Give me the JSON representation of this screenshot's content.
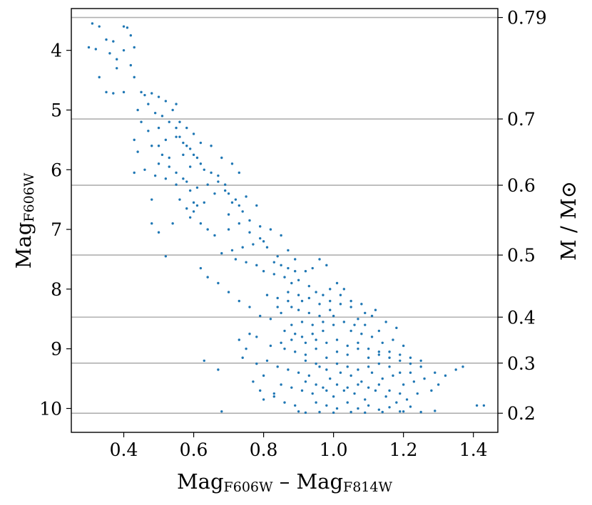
{
  "chart_data": {
    "type": "scatter",
    "xlabel": {
      "main": "Mag",
      "sub": "F606W",
      "sep": " – ",
      "main2": "Mag",
      "sub2": "F814W"
    },
    "ylabel": {
      "main": "Mag",
      "sub": "F606W"
    },
    "y2label": "M / M⊙",
    "xlim": [
      0.25,
      1.47
    ],
    "ylim": [
      3.3,
      10.4
    ],
    "y_inverted": true,
    "x_ticks": [
      0.4,
      0.6,
      0.8,
      1.0,
      1.2,
      1.4
    ],
    "x_tick_labels": [
      "0.4",
      "0.6",
      "0.8",
      "1.0",
      "1.2",
      "1.4"
    ],
    "y_ticks": [
      4,
      5,
      6,
      7,
      8,
      9,
      10
    ],
    "y_tick_labels": [
      "4",
      "5",
      "6",
      "7",
      "8",
      "9",
      "10"
    ],
    "mass_lines": [
      {
        "label": "0.79",
        "mag": 3.45
      },
      {
        "label": "0.7",
        "mag": 5.15
      },
      {
        "label": "0.6",
        "mag": 6.26
      },
      {
        "label": "0.5",
        "mag": 7.43
      },
      {
        "label": "0.4",
        "mag": 8.47
      },
      {
        "label": "0.3",
        "mag": 9.24
      },
      {
        "label": "0.2",
        "mag": 10.08
      }
    ],
    "point_color": "#1f77b4",
    "gridline_color": "#b0b0b0",
    "points": [
      [
        0.31,
        3.55
      ],
      [
        0.33,
        3.6
      ],
      [
        0.35,
        3.82
      ],
      [
        0.37,
        3.85
      ],
      [
        0.3,
        3.95
      ],
      [
        0.32,
        3.98
      ],
      [
        0.36,
        4.05
      ],
      [
        0.38,
        4.15
      ],
      [
        0.4,
        3.6
      ],
      [
        0.41,
        3.62
      ],
      [
        0.42,
        3.75
      ],
      [
        0.43,
        3.95
      ],
      [
        0.4,
        4.0
      ],
      [
        0.42,
        4.25
      ],
      [
        0.38,
        4.3
      ],
      [
        0.43,
        4.45
      ],
      [
        0.33,
        4.45
      ],
      [
        0.35,
        4.7
      ],
      [
        0.37,
        4.72
      ],
      [
        0.4,
        4.7
      ],
      [
        0.45,
        4.7
      ],
      [
        0.46,
        4.75
      ],
      [
        0.48,
        4.72
      ],
      [
        0.5,
        4.78
      ],
      [
        0.52,
        4.85
      ],
      [
        0.55,
        4.9
      ],
      [
        0.47,
        4.9
      ],
      [
        0.44,
        5.0
      ],
      [
        0.49,
        5.05
      ],
      [
        0.51,
        5.1
      ],
      [
        0.54,
        5.0
      ],
      [
        0.56,
        5.2
      ],
      [
        0.58,
        5.3
      ],
      [
        0.45,
        5.2
      ],
      [
        0.47,
        5.35
      ],
      [
        0.5,
        5.3
      ],
      [
        0.52,
        5.5
      ],
      [
        0.55,
        5.45
      ],
      [
        0.43,
        5.5
      ],
      [
        0.44,
        5.7
      ],
      [
        0.48,
        5.6
      ],
      [
        0.53,
        5.8
      ],
      [
        0.57,
        5.75
      ],
      [
        0.59,
        5.95
      ],
      [
        0.5,
        5.9
      ],
      [
        0.46,
        6.0
      ],
      [
        0.49,
        6.1
      ],
      [
        0.52,
        6.15
      ],
      [
        0.55,
        6.25
      ],
      [
        0.58,
        6.2
      ],
      [
        0.61,
        6.3
      ],
      [
        0.6,
        5.4
      ],
      [
        0.62,
        5.55
      ],
      [
        0.65,
        5.6
      ],
      [
        0.68,
        5.8
      ],
      [
        0.71,
        5.9
      ],
      [
        0.73,
        6.05
      ],
      [
        0.67,
        6.1
      ],
      [
        0.64,
        6.25
      ],
      [
        0.66,
        6.4
      ],
      [
        0.69,
        6.35
      ],
      [
        0.72,
        6.5
      ],
      [
        0.75,
        6.45
      ],
      [
        0.78,
        6.6
      ],
      [
        0.74,
        6.7
      ],
      [
        0.7,
        6.75
      ],
      [
        0.76,
        6.85
      ],
      [
        0.79,
        6.95
      ],
      [
        0.82,
        7.0
      ],
      [
        0.85,
        7.1
      ],
      [
        0.8,
        7.2
      ],
      [
        0.77,
        7.25
      ],
      [
        0.74,
        7.3
      ],
      [
        0.71,
        7.35
      ],
      [
        0.68,
        7.4
      ],
      [
        0.56,
        6.5
      ],
      [
        0.58,
        6.65
      ],
      [
        0.6,
        6.7
      ],
      [
        0.62,
        6.9
      ],
      [
        0.64,
        7.0
      ],
      [
        0.66,
        7.1
      ],
      [
        0.63,
        6.55
      ],
      [
        0.59,
        6.8
      ],
      [
        0.54,
        6.9
      ],
      [
        0.52,
        7.45
      ],
      [
        0.48,
        6.5
      ],
      [
        0.48,
        6.9
      ],
      [
        0.5,
        7.05
      ],
      [
        0.43,
        6.05
      ],
      [
        0.72,
        7.5
      ],
      [
        0.75,
        7.55
      ],
      [
        0.78,
        7.6
      ],
      [
        0.8,
        7.7
      ],
      [
        0.83,
        7.75
      ],
      [
        0.86,
        7.8
      ],
      [
        0.88,
        7.9
      ],
      [
        0.9,
        7.85
      ],
      [
        0.92,
        7.7
      ],
      [
        0.94,
        7.65
      ],
      [
        0.96,
        7.5
      ],
      [
        0.98,
        7.6
      ],
      [
        0.84,
        7.45
      ],
      [
        0.87,
        7.35
      ],
      [
        0.89,
        7.5
      ],
      [
        0.93,
        7.95
      ],
      [
        0.95,
        8.05
      ],
      [
        0.97,
        8.1
      ],
      [
        0.99,
        8.0
      ],
      [
        1.01,
        7.9
      ],
      [
        1.03,
        8.0
      ],
      [
        0.91,
        8.2
      ],
      [
        0.88,
        8.3
      ],
      [
        0.85,
        8.4
      ],
      [
        0.82,
        8.5
      ],
      [
        0.79,
        8.45
      ],
      [
        0.76,
        8.3
      ],
      [
        0.73,
        8.2
      ],
      [
        0.7,
        8.05
      ],
      [
        0.67,
        7.9
      ],
      [
        0.64,
        7.8
      ],
      [
        0.62,
        7.65
      ],
      [
        0.81,
        8.1
      ],
      [
        0.84,
        8.15
      ],
      [
        0.87,
        8.05
      ],
      [
        0.9,
        8.35
      ],
      [
        0.93,
        8.4
      ],
      [
        0.96,
        8.45
      ],
      [
        0.99,
        8.35
      ],
      [
        1.02,
        8.25
      ],
      [
        1.05,
        8.3
      ],
      [
        1.07,
        8.5
      ],
      [
        1.09,
        8.6
      ],
      [
        1.11,
        8.45
      ],
      [
        1.13,
        8.7
      ],
      [
        1.0,
        8.6
      ],
      [
        0.97,
        8.7
      ],
      [
        0.94,
        8.75
      ],
      [
        0.91,
        8.8
      ],
      [
        0.88,
        8.85
      ],
      [
        0.85,
        8.9
      ],
      [
        0.82,
        8.95
      ],
      [
        0.78,
        8.8
      ],
      [
        0.76,
        8.75
      ],
      [
        0.86,
        9.0
      ],
      [
        0.89,
        9.05
      ],
      [
        0.92,
        9.1
      ],
      [
        0.95,
        9.0
      ],
      [
        0.98,
        9.15
      ],
      [
        1.01,
        9.05
      ],
      [
        1.04,
        9.1
      ],
      [
        1.07,
        9.0
      ],
      [
        1.1,
        9.15
      ],
      [
        1.13,
        9.1
      ],
      [
        1.16,
        9.05
      ],
      [
        1.19,
        9.2
      ],
      [
        1.22,
        9.25
      ],
      [
        1.25,
        9.3
      ],
      [
        1.2,
        8.95
      ],
      [
        1.17,
        8.85
      ],
      [
        1.14,
        8.9
      ],
      [
        1.11,
        8.8
      ],
      [
        1.08,
        8.75
      ],
      [
        1.05,
        8.7
      ],
      [
        0.81,
        9.2
      ],
      [
        0.84,
        9.3
      ],
      [
        0.87,
        9.35
      ],
      [
        0.9,
        9.4
      ],
      [
        0.93,
        9.45
      ],
      [
        0.96,
        9.3
      ],
      [
        0.99,
        9.5
      ],
      [
        1.02,
        9.4
      ],
      [
        1.05,
        9.45
      ],
      [
        1.08,
        9.55
      ],
      [
        1.11,
        9.4
      ],
      [
        1.14,
        9.5
      ],
      [
        1.17,
        9.45
      ],
      [
        1.2,
        9.6
      ],
      [
        1.23,
        9.55
      ],
      [
        1.26,
        9.5
      ],
      [
        1.29,
        9.4
      ],
      [
        1.32,
        9.45
      ],
      [
        1.35,
        9.35
      ],
      [
        1.37,
        9.3
      ],
      [
        1.3,
        9.6
      ],
      [
        1.28,
        9.7
      ],
      [
        0.85,
        9.6
      ],
      [
        0.88,
        9.65
      ],
      [
        0.91,
        9.7
      ],
      [
        0.94,
        9.75
      ],
      [
        0.97,
        9.65
      ],
      [
        1.0,
        9.8
      ],
      [
        1.03,
        9.7
      ],
      [
        1.06,
        9.75
      ],
      [
        1.09,
        9.85
      ],
      [
        1.12,
        9.7
      ],
      [
        1.15,
        9.8
      ],
      [
        1.18,
        9.9
      ],
      [
        1.21,
        9.85
      ],
      [
        1.24,
        9.75
      ],
      [
        0.95,
        9.9
      ],
      [
        0.98,
        9.95
      ],
      [
        1.01,
        10.0
      ],
      [
        1.04,
        9.9
      ],
      [
        1.07,
        10.0
      ],
      [
        1.1,
        9.95
      ],
      [
        1.13,
        10.02
      ],
      [
        1.16,
        9.98
      ],
      [
        1.19,
        10.05
      ],
      [
        1.22,
        9.97
      ],
      [
        0.9,
        10.05
      ],
      [
        0.92,
        10.07
      ],
      [
        0.96,
        10.06
      ],
      [
        1.0,
        10.07
      ],
      [
        1.05,
        10.06
      ],
      [
        1.09,
        10.07
      ],
      [
        1.14,
        10.06
      ],
      [
        1.2,
        10.05
      ],
      [
        1.25,
        10.06
      ],
      [
        1.29,
        10.04
      ],
      [
        1.41,
        9.95
      ],
      [
        1.43,
        9.95
      ],
      [
        0.68,
        10.05
      ],
      [
        0.8,
        9.85
      ],
      [
        0.83,
        9.75
      ],
      [
        0.63,
        9.2
      ],
      [
        0.67,
        9.35
      ],
      [
        0.74,
        9.15
      ],
      [
        0.78,
        9.25
      ],
      [
        0.8,
        9.45
      ],
      [
        0.73,
        8.85
      ],
      [
        0.75,
        9.0
      ],
      [
        0.77,
        9.55
      ],
      [
        0.79,
        9.7
      ],
      [
        0.83,
        9.8
      ],
      [
        0.86,
        9.9
      ],
      [
        0.89,
        9.95
      ],
      [
        0.92,
        9.2
      ],
      [
        0.95,
        9.25
      ],
      [
        0.98,
        9.35
      ],
      [
        1.01,
        9.25
      ],
      [
        1.04,
        9.3
      ],
      [
        1.07,
        9.35
      ],
      [
        1.1,
        9.3
      ],
      [
        1.13,
        9.25
      ],
      [
        1.16,
        9.3
      ],
      [
        1.19,
        9.4
      ],
      [
        1.22,
        9.4
      ],
      [
        0.92,
        9.55
      ],
      [
        0.95,
        9.6
      ],
      [
        0.98,
        9.7
      ],
      [
        1.01,
        9.6
      ],
      [
        1.04,
        9.65
      ],
      [
        1.07,
        9.6
      ],
      [
        1.1,
        9.65
      ],
      [
        1.13,
        9.6
      ],
      [
        1.16,
        9.7
      ],
      [
        1.19,
        9.75
      ],
      [
        0.88,
        8.6
      ],
      [
        0.91,
        8.55
      ],
      [
        0.94,
        8.6
      ],
      [
        0.97,
        8.55
      ],
      [
        1.0,
        8.45
      ],
      [
        1.03,
        8.55
      ],
      [
        1.06,
        8.6
      ],
      [
        1.09,
        8.4
      ],
      [
        1.12,
        8.35
      ],
      [
        1.15,
        8.55
      ],
      [
        1.18,
        8.65
      ],
      [
        0.86,
        8.7
      ],
      [
        0.89,
        8.75
      ],
      [
        0.92,
        8.9
      ],
      [
        0.95,
        8.85
      ],
      [
        0.98,
        8.9
      ],
      [
        1.01,
        8.85
      ],
      [
        1.04,
        8.95
      ],
      [
        1.07,
        8.9
      ],
      [
        1.1,
        9.0
      ],
      [
        1.13,
        9.05
      ],
      [
        1.16,
        9.15
      ],
      [
        1.19,
        9.1
      ],
      [
        1.22,
        9.15
      ],
      [
        1.25,
        9.2
      ],
      [
        0.84,
        8.3
      ],
      [
        0.87,
        8.2
      ],
      [
        0.9,
        8.1
      ],
      [
        0.93,
        8.15
      ],
      [
        0.96,
        8.25
      ],
      [
        0.99,
        8.2
      ],
      [
        1.02,
        8.1
      ],
      [
        1.05,
        8.2
      ],
      [
        1.08,
        8.25
      ],
      [
        0.7,
        7.0
      ],
      [
        0.73,
        6.9
      ],
      [
        0.76,
        7.05
      ],
      [
        0.79,
        7.15
      ],
      [
        0.81,
        7.3
      ],
      [
        0.83,
        7.55
      ],
      [
        0.85,
        7.6
      ],
      [
        0.87,
        7.65
      ],
      [
        0.89,
        7.7
      ],
      [
        0.58,
        5.6
      ],
      [
        0.6,
        5.75
      ],
      [
        0.62,
        5.9
      ],
      [
        0.63,
        6.0
      ],
      [
        0.65,
        6.05
      ],
      [
        0.67,
        6.2
      ],
      [
        0.69,
        6.25
      ],
      [
        0.7,
        6.4
      ],
      [
        0.71,
        6.55
      ],
      [
        0.73,
        6.6
      ],
      [
        0.53,
        5.2
      ],
      [
        0.55,
        5.3
      ],
      [
        0.56,
        5.45
      ],
      [
        0.57,
        5.55
      ],
      [
        0.59,
        5.65
      ],
      [
        0.61,
        5.8
      ],
      [
        0.5,
        5.6
      ],
      [
        0.51,
        5.75
      ],
      [
        0.53,
        5.95
      ],
      [
        0.55,
        6.05
      ],
      [
        0.57,
        6.15
      ],
      [
        0.59,
        6.35
      ],
      [
        0.6,
        6.55
      ],
      [
        0.61,
        6.6
      ]
    ]
  }
}
